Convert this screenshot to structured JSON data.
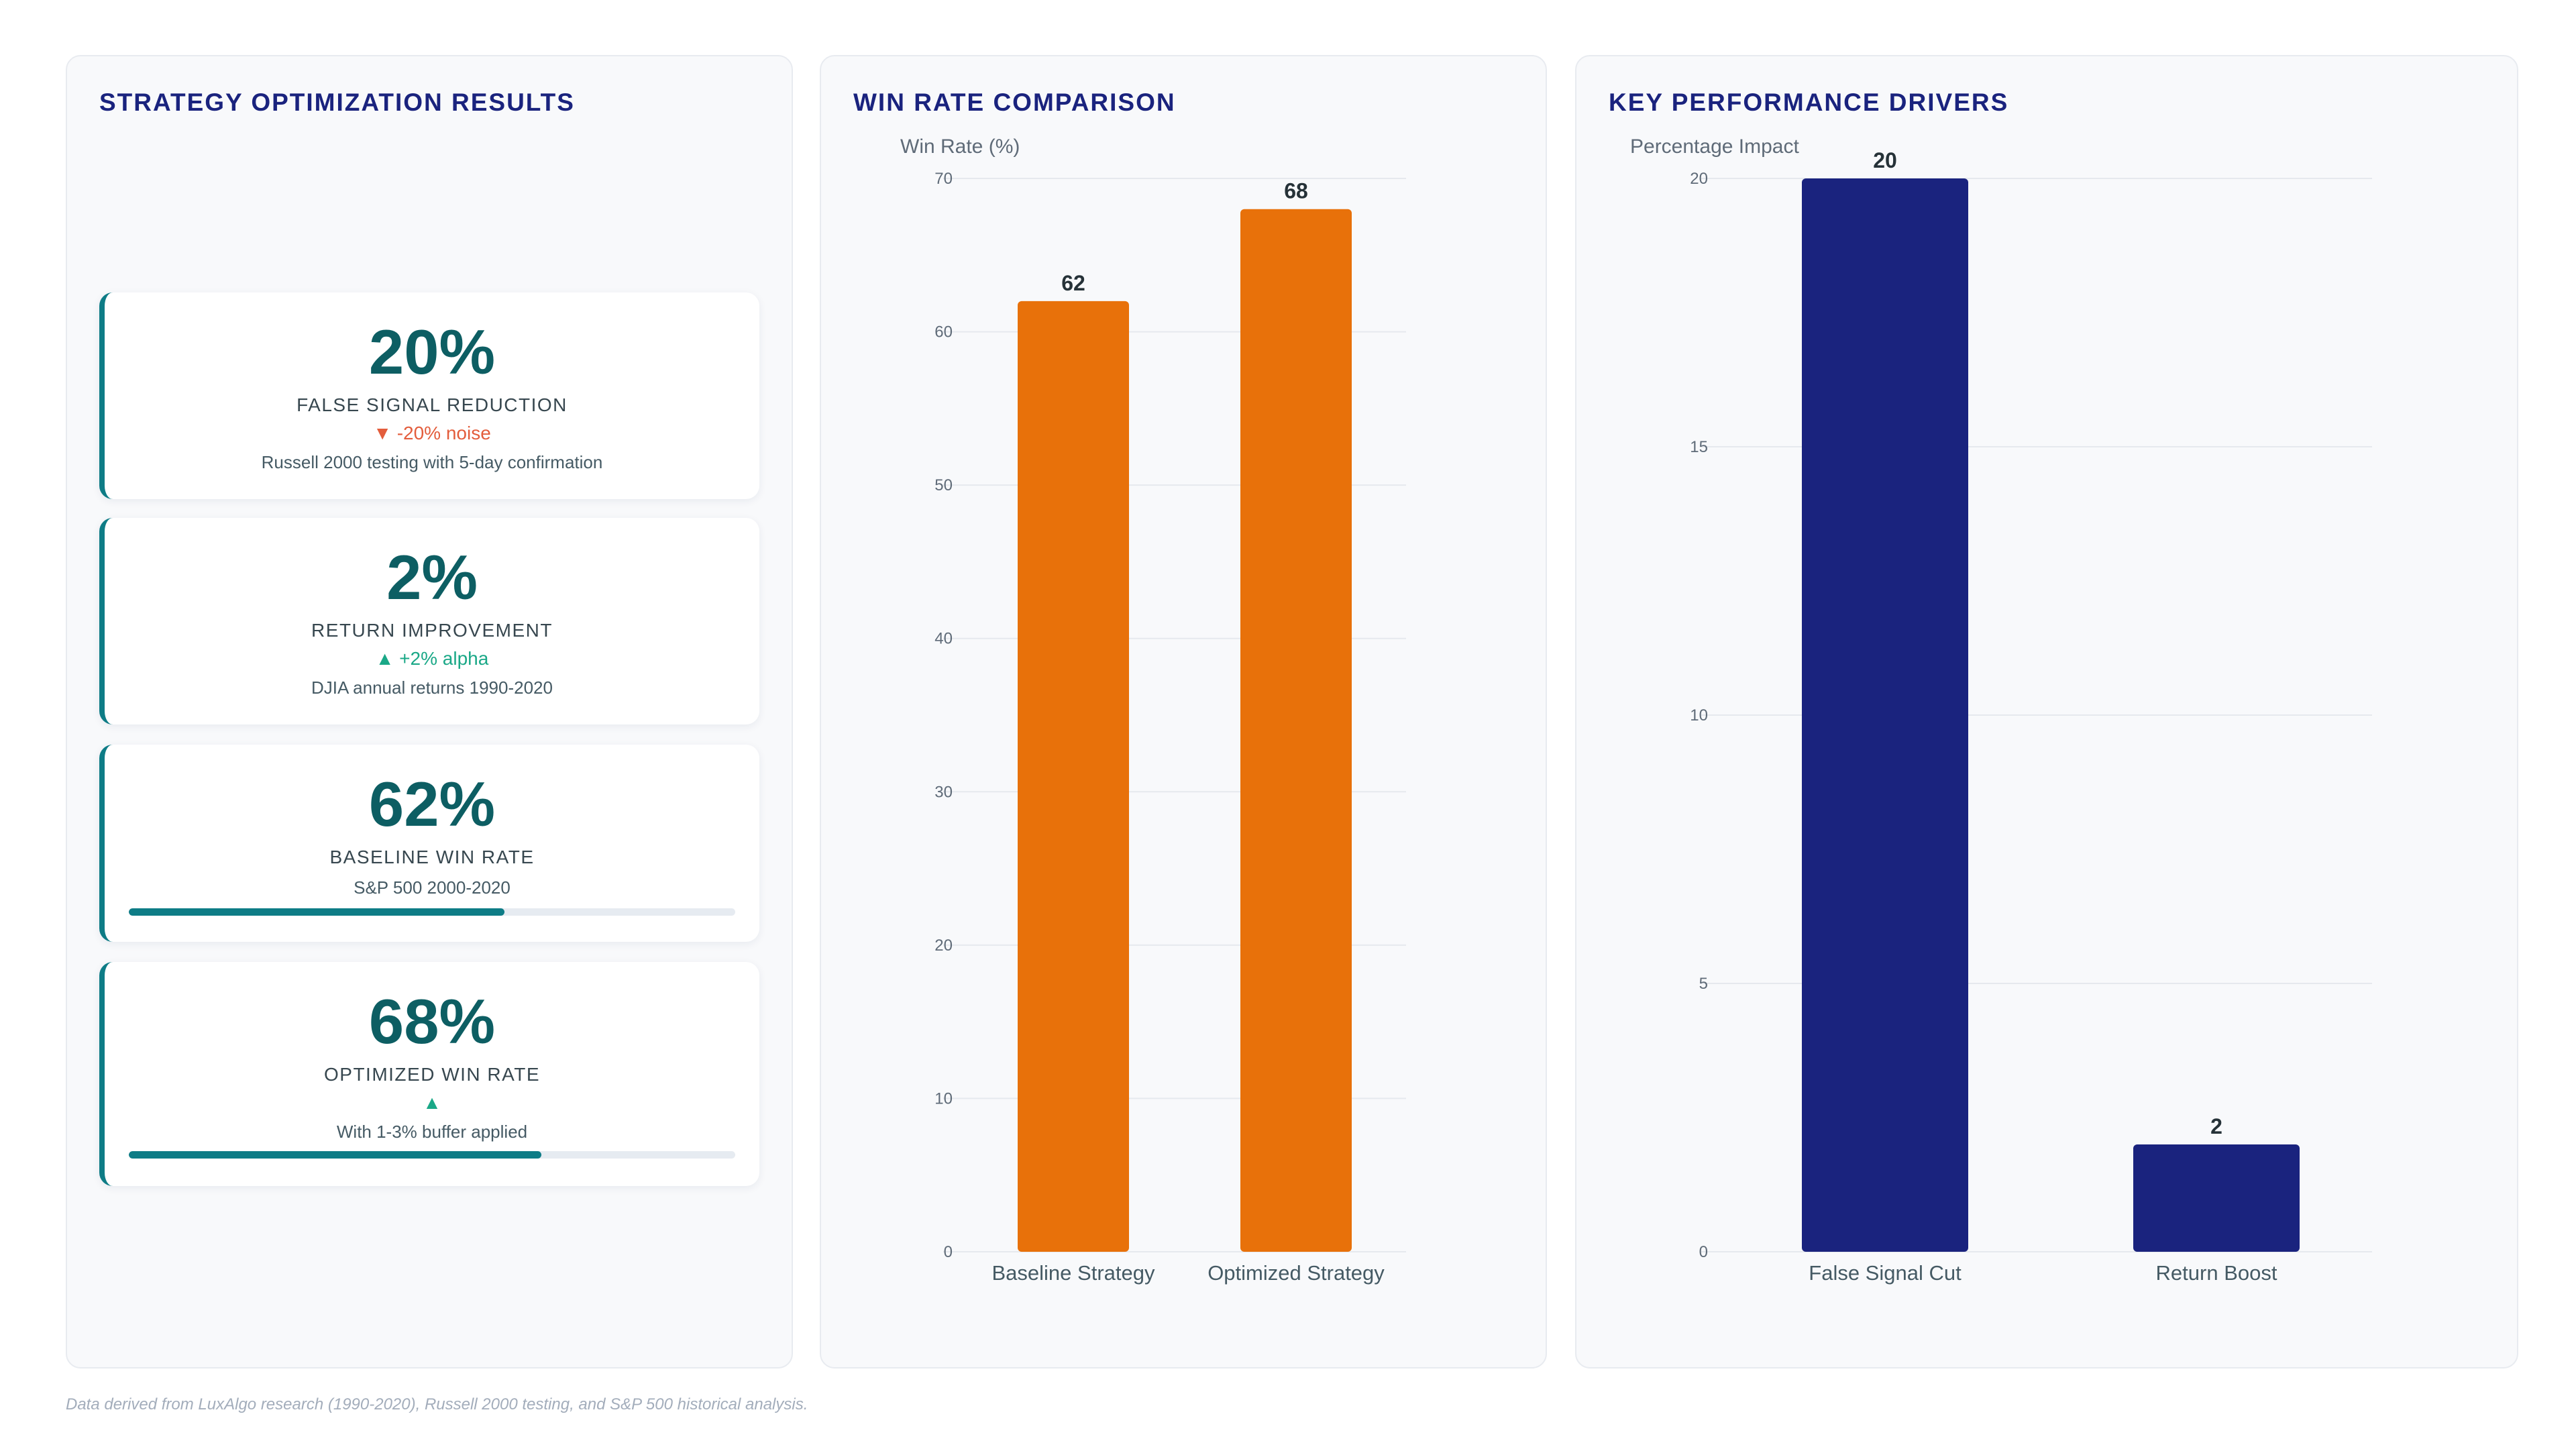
{
  "left_panel": {
    "title": "STRATEGY OPTIMIZATION RESULTS",
    "metrics": [
      {
        "value": "20%",
        "label": "FALSE SIGNAL REDUCTION",
        "change": "▼ -20% noise",
        "direction": "down",
        "source": "Russell 2000 testing with 5-day confirmation"
      },
      {
        "value": "2%",
        "label": "RETURN IMPROVEMENT",
        "change": "▲ +2% alpha",
        "direction": "up",
        "source": "DJIA annual returns 1990-2020"
      },
      {
        "value": "62%",
        "label": "BASELINE WIN RATE",
        "source": "S&P 500 2000-2020",
        "progress": 0.62
      },
      {
        "value": "68%",
        "label": "OPTIMIZED WIN RATE",
        "change": "▲",
        "direction": "up",
        "source": "With 1-3% buffer applied",
        "progress": 0.68
      }
    ]
  },
  "footer": {
    "note": "Data derived from LuxAlgo research (1990-2020), Russell 2000 testing, and S&P 500 historical analysis."
  },
  "colors": {
    "win_rate_bars": "#e8710a",
    "driver_bars": "#1a237e",
    "accent": "#0e7c86",
    "down": "#e35d3c",
    "up": "#1aa887"
  },
  "chart_data": [
    {
      "type": "bar",
      "title": "WIN RATE COMPARISON",
      "ylabel": "Win Rate (%)",
      "xlabel": "",
      "categories": [
        "Baseline Strategy",
        "Optimized Strategy"
      ],
      "values": [
        62,
        68
      ],
      "ylim": [
        0,
        70
      ],
      "yticks": [
        0,
        10,
        20,
        30,
        40,
        50,
        60,
        70
      ],
      "grid": true,
      "legend": "none"
    },
    {
      "type": "bar",
      "title": "KEY PERFORMANCE DRIVERS",
      "ylabel": "Percentage Impact",
      "xlabel": "",
      "categories": [
        "False Signal Cut",
        "Return Boost"
      ],
      "values": [
        20,
        2
      ],
      "ylim": [
        0,
        20
      ],
      "yticks": [
        0,
        5,
        10,
        15,
        20
      ],
      "grid": true,
      "legend": "none"
    }
  ]
}
